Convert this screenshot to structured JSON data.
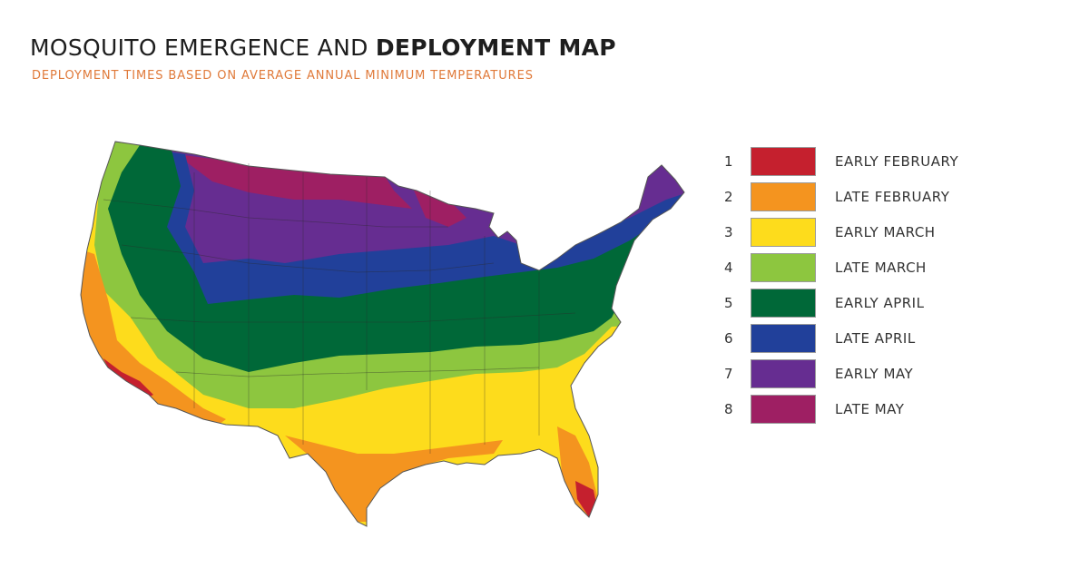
{
  "header": {
    "title_regular": "MOSQUITO EMERGENCE AND ",
    "title_bold": "DEPLOYMENT MAP",
    "subtitle": "DEPLOYMENT TIMES BASED ON AVERAGE ANNUAL MINIMUM TEMPERATURES"
  },
  "legend": {
    "items": [
      {
        "number": "1",
        "label": "EARLY FEBRUARY",
        "color": "#c5202e"
      },
      {
        "number": "2",
        "label": "LATE FEBRUARY",
        "color": "#f4941f"
      },
      {
        "number": "3",
        "label": "EARLY MARCH",
        "color": "#fddc1c"
      },
      {
        "number": "4",
        "label": "LATE MARCH",
        "color": "#8dc63f"
      },
      {
        "number": "5",
        "label": "EARLY APRIL",
        "color": "#006838"
      },
      {
        "number": "6",
        "label": "LATE APRIL",
        "color": "#21409a"
      },
      {
        "number": "7",
        "label": "EARLY MAY",
        "color": "#662d91"
      },
      {
        "number": "8",
        "label": "LATE MAY",
        "color": "#9e1f63"
      }
    ]
  }
}
